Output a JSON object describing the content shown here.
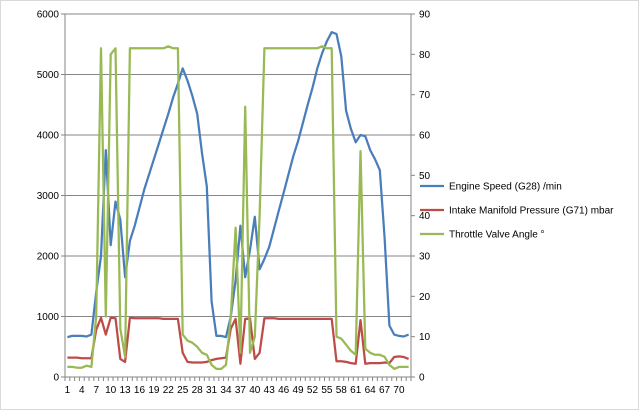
{
  "chart_data": {
    "type": "line",
    "title": "",
    "xlabel": "",
    "ylabel": "",
    "grid": true,
    "legend_position": "right",
    "x": [
      1,
      2,
      3,
      4,
      5,
      6,
      7,
      8,
      9,
      10,
      11,
      12,
      13,
      14,
      15,
      16,
      17,
      18,
      19,
      20,
      21,
      22,
      23,
      24,
      25,
      26,
      27,
      28,
      29,
      30,
      31,
      32,
      33,
      34,
      35,
      36,
      37,
      38,
      39,
      40,
      41,
      42,
      43,
      44,
      45,
      46,
      47,
      48,
      49,
      50,
      51,
      52,
      53,
      54,
      55,
      56,
      57,
      58,
      59,
      60,
      61,
      62,
      63,
      64,
      65,
      66,
      67,
      68,
      69,
      70,
      71,
      72
    ],
    "x_tick_labels": [
      "1",
      "4",
      "7",
      "10",
      "13",
      "16",
      "19",
      "22",
      "25",
      "28",
      "31",
      "34",
      "37",
      "40",
      "43",
      "46",
      "49",
      "52",
      "55",
      "58",
      "61",
      "64",
      "67",
      "70"
    ],
    "y_left": {
      "min": 0,
      "max": 6000,
      "ticks": [
        "0",
        "1000",
        "2000",
        "3000",
        "4000",
        "5000",
        "6000"
      ]
    },
    "y_right": {
      "min": 0,
      "max": 90,
      "ticks": [
        "0",
        "10",
        "20",
        "30",
        "40",
        "50",
        "60",
        "70",
        "80",
        "90"
      ]
    },
    "series": [
      {
        "name": "Engine Speed (G28)  /min",
        "axis": "left",
        "color": "#4a7ebb",
        "values": [
          660,
          680,
          680,
          680,
          670,
          700,
          1400,
          2000,
          3750,
          2180,
          2900,
          2600,
          1650,
          2250,
          2500,
          2800,
          3100,
          3350,
          3600,
          3850,
          4100,
          4350,
          4620,
          4850,
          5100,
          4900,
          4650,
          4350,
          3700,
          3150,
          1250,
          680,
          680,
          660,
          1000,
          1600,
          2500,
          1650,
          2100,
          2650,
          1780,
          1950,
          2150,
          2450,
          2750,
          3050,
          3350,
          3650,
          3900,
          4200,
          4500,
          4780,
          5100,
          5350,
          5550,
          5700,
          5670,
          5300,
          4400,
          4100,
          3880,
          4000,
          3980,
          3750,
          3600,
          3420,
          2300,
          850,
          700,
          680,
          670,
          700
        ]
      },
      {
        "name": "Intake Manifold Pressure (G71)  mbar",
        "axis": "left",
        "color": "#be4b48",
        "values": [
          320,
          320,
          320,
          310,
          310,
          310,
          780,
          980,
          700,
          980,
          970,
          300,
          250,
          980,
          970,
          970,
          970,
          970,
          970,
          970,
          960,
          960,
          960,
          960,
          400,
          250,
          240,
          240,
          240,
          250,
          280,
          300,
          310,
          320,
          800,
          960,
          220,
          960,
          970,
          300,
          400,
          970,
          970,
          970,
          960,
          960,
          960,
          960,
          960,
          960,
          960,
          960,
          960,
          960,
          960,
          960,
          260,
          260,
          250,
          230,
          220,
          940,
          220,
          230,
          230,
          230,
          240,
          230,
          330,
          340,
          330,
          300
        ]
      },
      {
        "name": "Throttle Valve Angle °",
        "axis": "right",
        "color": "#98b954",
        "values": [
          2.5,
          2.5,
          2.3,
          2.3,
          2.8,
          2.5,
          15,
          81.5,
          15,
          80,
          81.5,
          12,
          5,
          81.5,
          81.5,
          81.5,
          81.5,
          81.5,
          81.5,
          81.5,
          81.5,
          82,
          81.5,
          81.5,
          10.5,
          9,
          8.5,
          7.5,
          6,
          5.5,
          3,
          2,
          2,
          3,
          15,
          37,
          6,
          67,
          6,
          10,
          40,
          81.5,
          81.5,
          81.5,
          81.5,
          81.5,
          81.5,
          81.5,
          81.5,
          81.5,
          81.5,
          81.5,
          81.5,
          82,
          81.5,
          81.5,
          10,
          9.5,
          8,
          6.5,
          5.5,
          56,
          7,
          6,
          5.5,
          5.5,
          5,
          3,
          2,
          2.5,
          2.5,
          2.5
        ]
      }
    ]
  }
}
